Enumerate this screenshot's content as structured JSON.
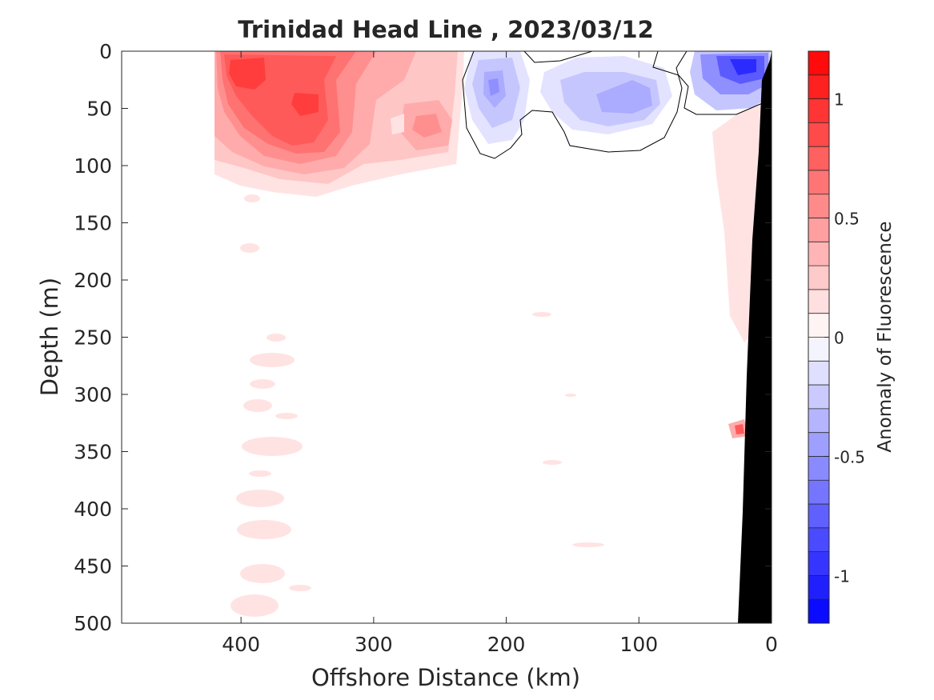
{
  "chart_data": {
    "type": "contour",
    "title": "Trinidad Head Line , 2023/03/12",
    "xlabel": "Offshore Distance (km)",
    "ylabel": "Depth (m)",
    "colorbar_label": "Anomaly of Fluorescence",
    "xlim": [
      490,
      0
    ],
    "ylim": [
      500,
      0
    ],
    "x_ticks": [
      400,
      300,
      200,
      100,
      0
    ],
    "y_ticks": [
      0,
      50,
      100,
      150,
      200,
      250,
      300,
      350,
      400,
      450,
      500
    ],
    "colorbar_range": [
      -1.2,
      1.2
    ],
    "colorbar_ticks": [
      1,
      0.5,
      0,
      -0.5,
      -1
    ],
    "colorbar_levels": 24,
    "zero_contour": "black",
    "bathymetry_color": "#000000",
    "colors": {
      "positive_max": "#ff0000",
      "negative_max": "#0000ff",
      "neutral": "#ffffff"
    },
    "features": [
      {
        "x": 345,
        "y": 40,
        "value": 0.85
      },
      {
        "x": 395,
        "y": 25,
        "value": 0.95
      },
      {
        "x": 350,
        "y": 45,
        "value": 0.95
      },
      {
        "x": 260,
        "y": 65,
        "value": 0.4
      },
      {
        "x": 210,
        "y": 30,
        "value": -0.35
      },
      {
        "x": 120,
        "y": 40,
        "value": -0.3
      },
      {
        "x": 20,
        "y": 12,
        "value": -0.85
      },
      {
        "x": 25,
        "y": 330,
        "value": 0.4
      }
    ],
    "bathymetry": [
      {
        "x": 0,
        "depth": 10
      },
      {
        "x": 12,
        "depth": 80
      },
      {
        "x": 18,
        "depth": 200
      },
      {
        "x": 25,
        "depth": 350
      },
      {
        "x": 29,
        "depth": 500
      }
    ]
  }
}
